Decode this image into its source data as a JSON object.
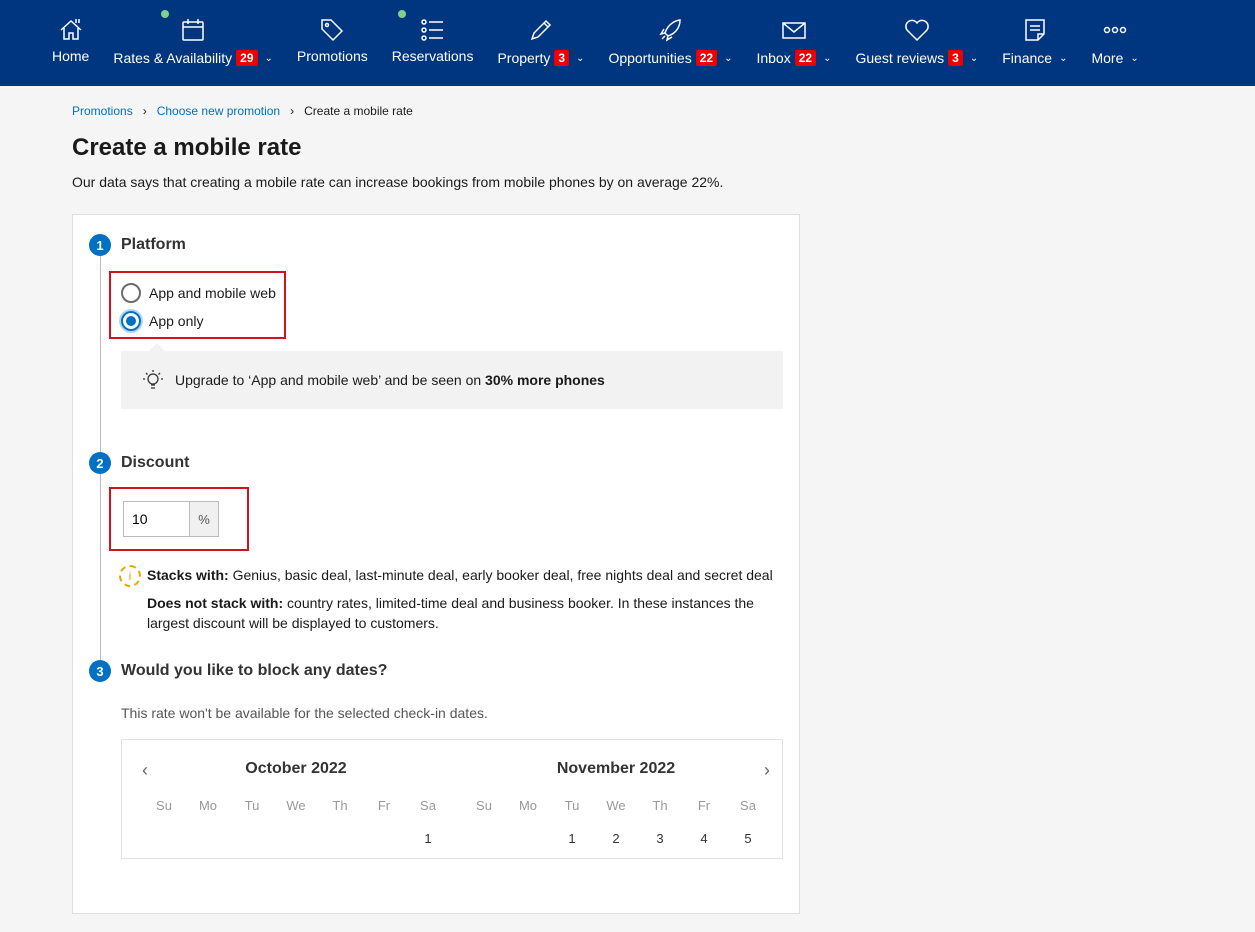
{
  "nav": [
    {
      "label": "Home",
      "icon": "home-icon",
      "badge": null,
      "dropdown": false,
      "dot": false
    },
    {
      "label": "Rates & Availability",
      "icon": "calendar-icon",
      "badge": "29",
      "dropdown": true,
      "dot": true
    },
    {
      "label": "Promotions",
      "icon": "tag-icon",
      "badge": null,
      "dropdown": false,
      "dot": false
    },
    {
      "label": "Reservations",
      "icon": "list-icon",
      "badge": null,
      "dropdown": false,
      "dot": true
    },
    {
      "label": "Property",
      "icon": "pencil-icon",
      "badge": "3",
      "dropdown": true,
      "dot": false
    },
    {
      "label": "Opportunities",
      "icon": "rocket-icon",
      "badge": "22",
      "dropdown": true,
      "dot": false
    },
    {
      "label": "Inbox",
      "icon": "envelope-icon",
      "badge": "22",
      "dropdown": true,
      "dot": false
    },
    {
      "label": "Guest reviews",
      "icon": "heart-icon",
      "badge": "3",
      "dropdown": true,
      "dot": false
    },
    {
      "label": "Finance",
      "icon": "document-icon",
      "badge": null,
      "dropdown": true,
      "dot": false
    },
    {
      "label": "More",
      "icon": "more-icon",
      "badge": null,
      "dropdown": true,
      "dot": false
    }
  ],
  "breadcrumb": [
    "Promotions",
    "Choose new promotion",
    "Create a mobile rate"
  ],
  "title": "Create a mobile rate",
  "subtitle": "Our data says that creating a mobile rate can increase bookings from mobile phones by on average 22%.",
  "colors": {
    "nav": "#003580",
    "accent": "#0071c2",
    "badge": "#e00000",
    "highlight": "#d4111e"
  },
  "step1": {
    "num": "1",
    "title": "Platform",
    "options": [
      {
        "label": "App and mobile web",
        "selected": false
      },
      {
        "label": "App only",
        "selected": true
      }
    ],
    "tip_pre": "Upgrade to ‘App and mobile web’ and be seen on ",
    "tip_bold": "30% more phones"
  },
  "step2": {
    "num": "2",
    "title": "Discount",
    "value": "10",
    "unit": "%",
    "stacks_label": "Stacks with:",
    "stacks": " Genius, basic deal, last-minute deal, early booker deal, free nights deal and secret deal",
    "nostack_label": "Does not stack with:",
    "nostack": " country rates, limited-time deal and business booker. In these instances the largest discount will be displayed to customers."
  },
  "step3": {
    "num": "3",
    "title": "Would you like to block any dates?",
    "desc": "This rate won't be available for the selected check-in dates.",
    "months": [
      {
        "name": "October 2022",
        "days": [
          "",
          "",
          "",
          "",
          "",
          "",
          "1"
        ]
      },
      {
        "name": "November 2022",
        "days": [
          "",
          "",
          "1",
          "2",
          "3",
          "4",
          "5"
        ]
      }
    ],
    "weekdays": [
      "Su",
      "Mo",
      "Tu",
      "We",
      "Th",
      "Fr",
      "Sa"
    ]
  }
}
